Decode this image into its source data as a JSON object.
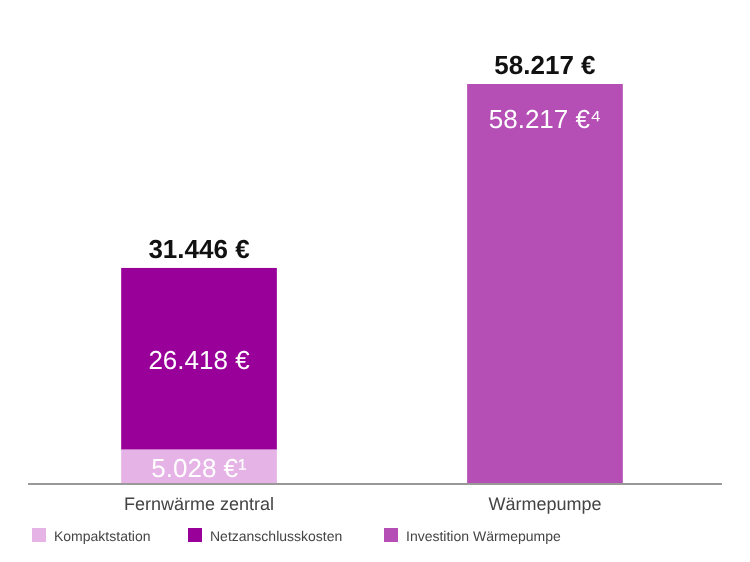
{
  "chart_data": {
    "type": "bar",
    "stacked": true,
    "categories": [
      "Fernwärme zentral",
      "Wärmepumpe"
    ],
    "series": [
      {
        "name": "Kompaktstation",
        "color": "#e6b3e6",
        "values": [
          5028,
          null
        ],
        "value_labels": [
          "5.028 €¹",
          null
        ]
      },
      {
        "name": "Netzanschlusskosten",
        "color": "#990099",
        "values": [
          26418,
          null
        ],
        "value_labels": [
          "26.418 €",
          null
        ]
      },
      {
        "name": "Investition Wärmepumpe",
        "color": "#b54fb5",
        "values": [
          null,
          58217
        ],
        "value_labels": [
          null,
          "58.217 €⁴"
        ]
      }
    ],
    "totals": [
      "31.446 €",
      "58.217 €"
    ],
    "legend": "bottom"
  }
}
